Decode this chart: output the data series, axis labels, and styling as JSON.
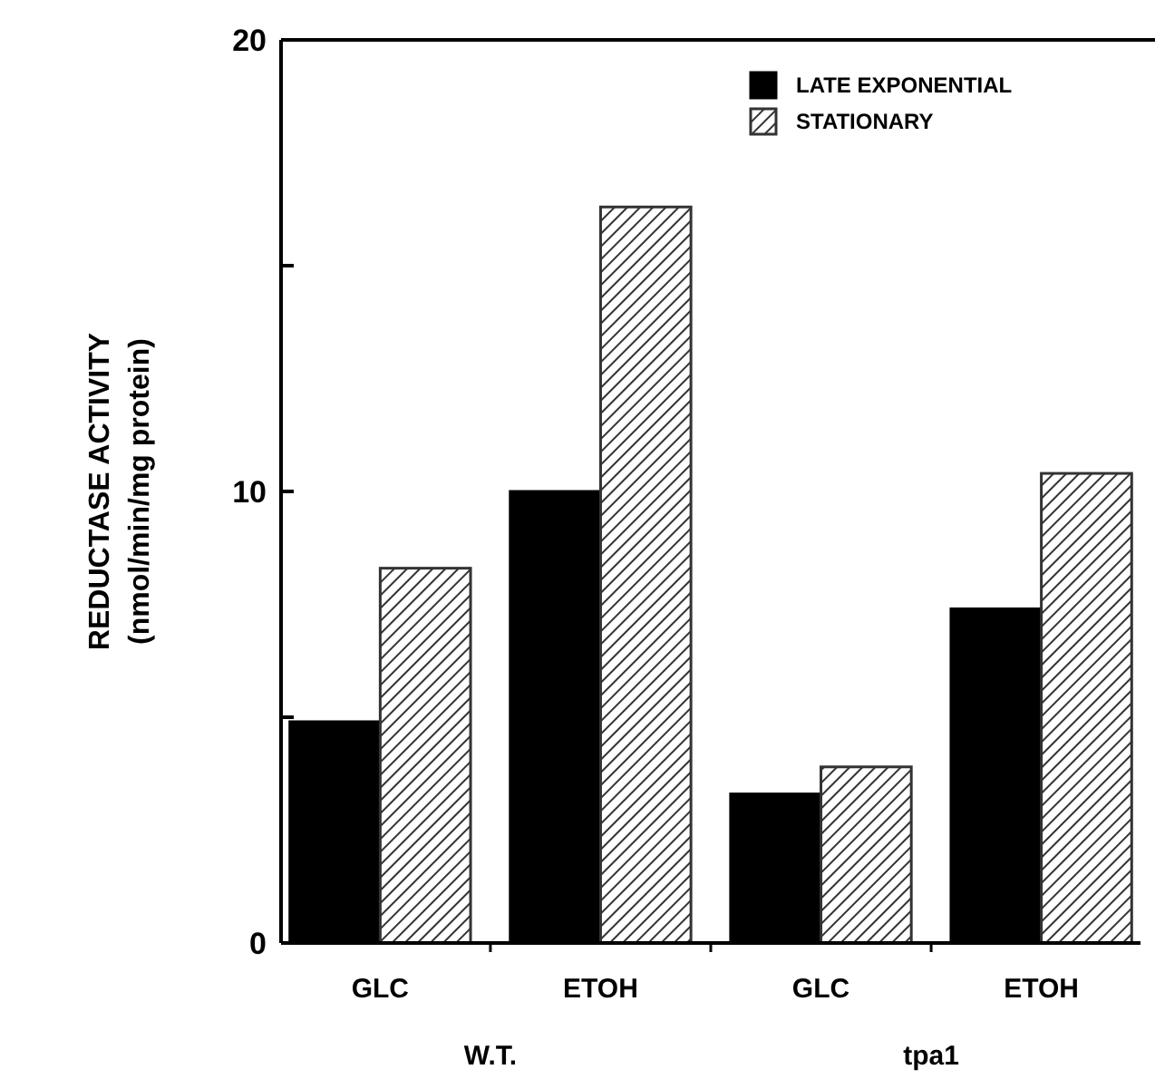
{
  "chart_data": {
    "type": "bar",
    "ylabel": "REDUCTASE ACTIVITY\n(nmol/min/mg protein)",
    "categories": [
      "GLC",
      "ETOH",
      "GLC",
      "ETOH"
    ],
    "series": [
      {
        "name": "LATE EXPONENTIAL",
        "color": "#000000",
        "values": [
          4.9,
          10.0,
          3.3,
          7.4
        ]
      },
      {
        "name": "STATIONARY",
        "color": "#333333",
        "values": [
          8.3,
          16.3,
          3.9,
          10.4
        ]
      }
    ],
    "ylim": [
      0,
      20
    ],
    "yticks": [
      0,
      {
        "value": 5,
        "label": null
      },
      10,
      {
        "value": 15,
        "label": null
      },
      20
    ],
    "annotations": [
      "W.T.",
      "tpa1"
    ],
    "legend": "top right",
    "grid": false
  }
}
